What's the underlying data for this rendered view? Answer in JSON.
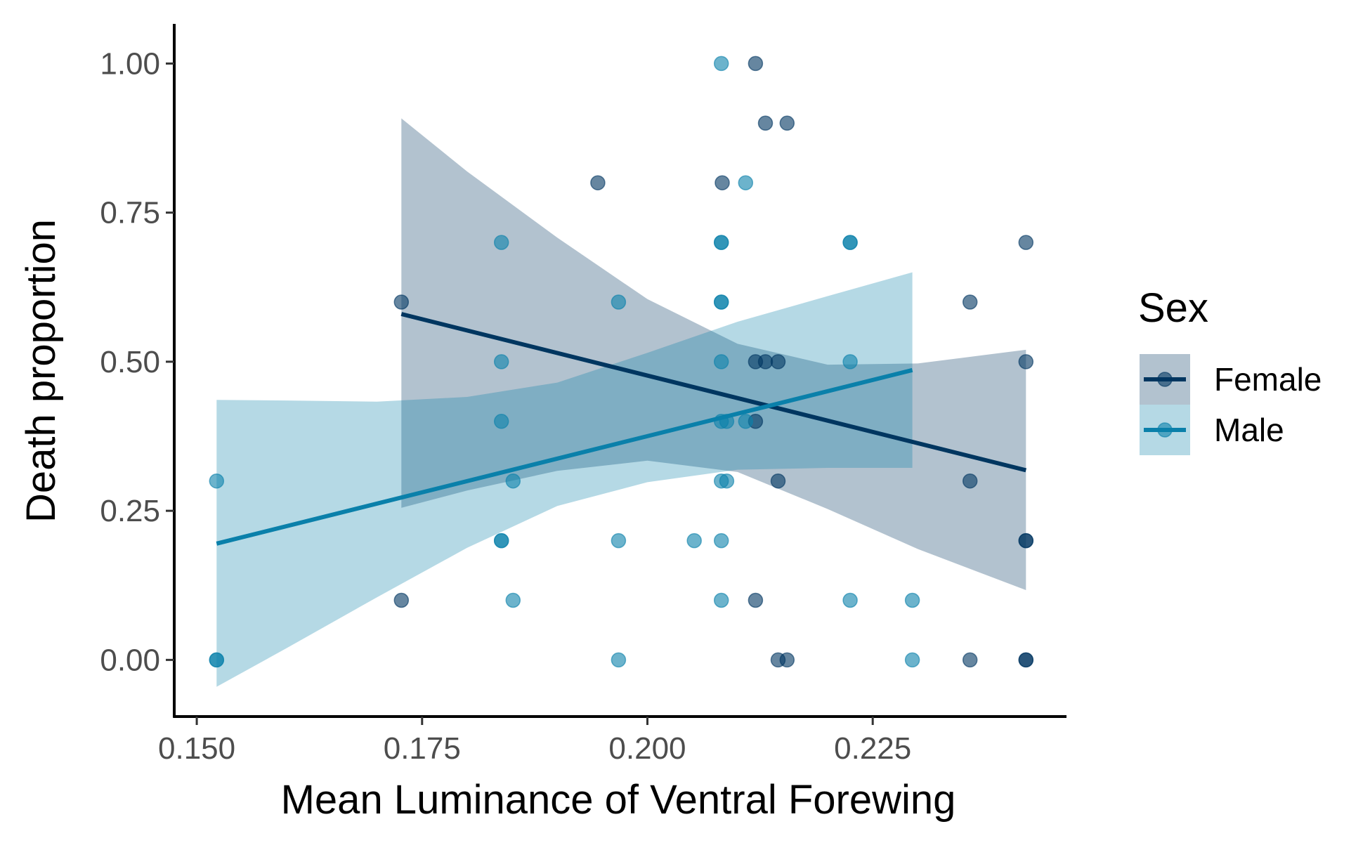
{
  "chart_data": {
    "type": "scatter",
    "xlabel": "Mean Luminance of Ventral Forewing",
    "ylabel": "Death proportion",
    "xlim": [
      0.1475,
      0.2465
    ],
    "ylim": [
      -0.095,
      1.05
    ],
    "x_ticks": [
      0.15,
      0.175,
      0.2,
      0.225
    ],
    "x_tick_labels": [
      "0.150",
      "0.175",
      "0.200",
      "0.225"
    ],
    "y_ticks": [
      0,
      0.25,
      0.5,
      0.75,
      1.0
    ],
    "y_tick_labels": [
      "0.00",
      "0.25",
      "0.50",
      "0.75",
      "1.00"
    ],
    "grid": false,
    "legend": {
      "title": "Sex",
      "placement": "right",
      "entries": [
        "Female",
        "Male"
      ]
    },
    "series": [
      {
        "name": "Female",
        "color": "#003660",
        "point_alpha": 0.6,
        "points": [
          [
            0.1727,
            0.6
          ],
          [
            0.1727,
            0.1
          ],
          [
            0.1945,
            0.8
          ],
          [
            0.2083,
            0.8
          ],
          [
            0.212,
            1.0
          ],
          [
            0.2131,
            0.9
          ],
          [
            0.2155,
            0.9
          ],
          [
            0.212,
            0.5
          ],
          [
            0.2131,
            0.5
          ],
          [
            0.2145,
            0.5
          ],
          [
            0.212,
            0.4
          ],
          [
            0.2145,
            0.3
          ],
          [
            0.212,
            0.1
          ],
          [
            0.2145,
            0.0
          ],
          [
            0.2155,
            0.0
          ],
          [
            0.2358,
            0.6
          ],
          [
            0.2358,
            0.3
          ],
          [
            0.2358,
            0.0
          ],
          [
            0.242,
            0.7
          ],
          [
            0.242,
            0.5
          ],
          [
            0.242,
            0.2
          ],
          [
            0.242,
            0.2
          ],
          [
            0.242,
            0.0
          ],
          [
            0.242,
            0.0
          ]
        ],
        "fit": {
          "x": [
            0.1727,
            0.242
          ],
          "y": [
            0.58,
            0.318
          ]
        },
        "band": {
          "x": [
            0.1727,
            0.18,
            0.19,
            0.2,
            0.21,
            0.22,
            0.23,
            0.242
          ],
          "lower": [
            0.255,
            0.284,
            0.317,
            0.334,
            0.315,
            0.253,
            0.186,
            0.117
          ],
          "upper": [
            0.908,
            0.819,
            0.708,
            0.605,
            0.53,
            0.495,
            0.497,
            0.52
          ]
        }
      },
      {
        "name": "Male",
        "color": "#0a80aa",
        "point_alpha": 0.6,
        "points": [
          [
            0.1522,
            0.3
          ],
          [
            0.1522,
            0.0
          ],
          [
            0.1522,
            0.0
          ],
          [
            0.1838,
            0.7
          ],
          [
            0.1838,
            0.5
          ],
          [
            0.1838,
            0.4
          ],
          [
            0.1838,
            0.2
          ],
          [
            0.1838,
            0.2
          ],
          [
            0.1851,
            0.3
          ],
          [
            0.1851,
            0.1
          ],
          [
            0.1968,
            0.6
          ],
          [
            0.1968,
            0.2
          ],
          [
            0.1968,
            0.0
          ],
          [
            0.2052,
            0.2
          ],
          [
            0.2082,
            1.0
          ],
          [
            0.2082,
            0.7
          ],
          [
            0.2082,
            0.7
          ],
          [
            0.2082,
            0.6
          ],
          [
            0.2082,
            0.6
          ],
          [
            0.2082,
            0.5
          ],
          [
            0.2082,
            0.4
          ],
          [
            0.2088,
            0.4
          ],
          [
            0.2082,
            0.3
          ],
          [
            0.2088,
            0.3
          ],
          [
            0.2082,
            0.2
          ],
          [
            0.2082,
            0.1
          ],
          [
            0.2109,
            0.8
          ],
          [
            0.2109,
            0.4
          ],
          [
            0.2225,
            0.7
          ],
          [
            0.2225,
            0.7
          ],
          [
            0.2225,
            0.5
          ],
          [
            0.2225,
            0.1
          ],
          [
            0.2294,
            0.1
          ],
          [
            0.2294,
            0.0
          ]
        ],
        "fit": {
          "x": [
            0.1522,
            0.2294
          ],
          "y": [
            0.195,
            0.486
          ]
        },
        "band": {
          "x": [
            0.1522,
            0.16,
            0.17,
            0.18,
            0.19,
            0.2,
            0.21,
            0.22,
            0.2294
          ],
          "lower": [
            -0.045,
            0.02,
            0.105,
            0.188,
            0.258,
            0.298,
            0.319,
            0.322,
            0.322
          ],
          "upper": [
            0.436,
            0.435,
            0.433,
            0.441,
            0.465,
            0.515,
            0.567,
            0.61,
            0.65
          ]
        }
      }
    ]
  }
}
